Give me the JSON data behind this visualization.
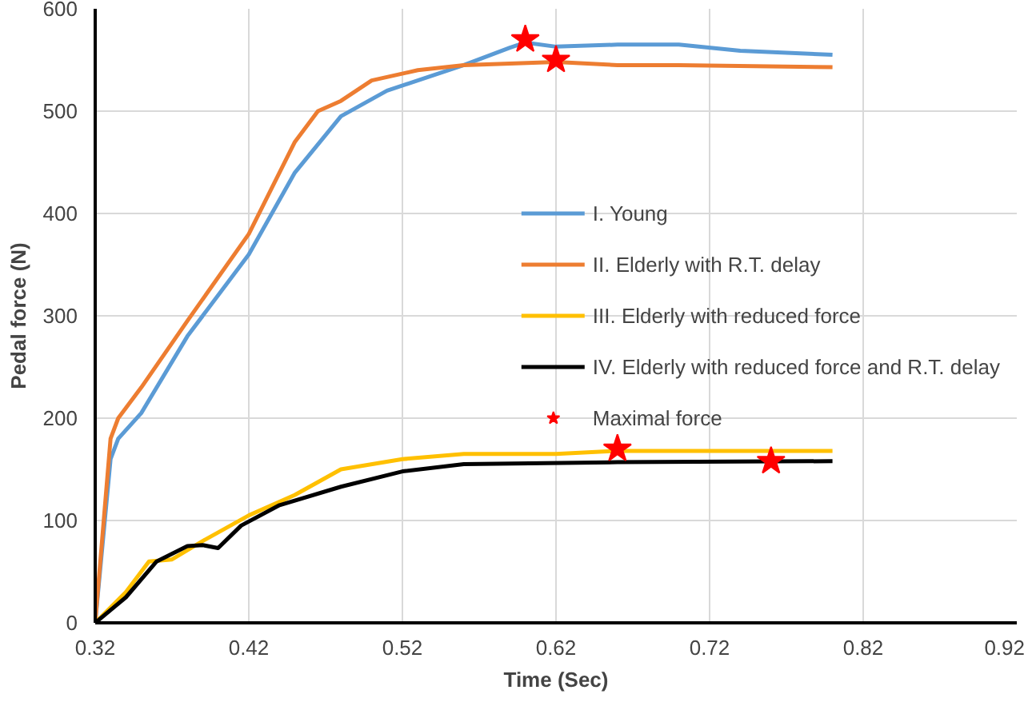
{
  "chart_data": {
    "type": "line",
    "xlabel": "Time (Sec)",
    "ylabel": "Pedal force (N)",
    "xlim": [
      0.32,
      0.92
    ],
    "xticks": [
      0.32,
      0.42,
      0.52,
      0.62,
      0.72,
      0.82,
      0.92
    ],
    "ylim": [
      0,
      600
    ],
    "yticks": [
      0,
      100,
      200,
      300,
      400,
      500,
      600
    ],
    "grid": true,
    "legend": "right",
    "line_style": "solid",
    "marker": "none",
    "series": [
      {
        "name": "I. Young",
        "color": "#5b9bd5",
        "x": [
          0.32,
          0.33,
          0.335,
          0.35,
          0.38,
          0.42,
          0.45,
          0.48,
          0.51,
          0.53,
          0.56,
          0.59,
          0.6,
          0.62,
          0.66,
          0.7,
          0.74,
          0.8
        ],
        "values": [
          0,
          160,
          180,
          205,
          280,
          360,
          440,
          495,
          520,
          530,
          545,
          562,
          567,
          563,
          565,
          565,
          559,
          555
        ]
      },
      {
        "name": "II. Elderly with R.T. delay",
        "color": "#ed7d31",
        "x": [
          0.32,
          0.33,
          0.335,
          0.35,
          0.38,
          0.42,
          0.45,
          0.465,
          0.48,
          0.5,
          0.53,
          0.56,
          0.62,
          0.66,
          0.7,
          0.8
        ],
        "values": [
          0,
          180,
          200,
          230,
          295,
          380,
          470,
          500,
          510,
          530,
          540,
          545,
          548,
          545,
          545,
          543
        ]
      },
      {
        "name": "III. Elderly with reduced force",
        "color": "#ffc000",
        "x": [
          0.32,
          0.34,
          0.355,
          0.37,
          0.39,
          0.42,
          0.45,
          0.48,
          0.52,
          0.56,
          0.62,
          0.66,
          0.8
        ],
        "values": [
          0,
          30,
          60,
          62,
          80,
          105,
          125,
          150,
          160,
          165,
          165,
          168,
          168
        ]
      },
      {
        "name": "IV. Elderly with reduced force and R.T. delay",
        "color": "#000000",
        "x": [
          0.32,
          0.34,
          0.36,
          0.38,
          0.39,
          0.4,
          0.415,
          0.44,
          0.48,
          0.52,
          0.56,
          0.66,
          0.8
        ],
        "values": [
          0,
          25,
          60,
          75,
          76,
          73,
          95,
          115,
          133,
          148,
          155,
          157,
          158
        ]
      },
      {
        "name": "Maximal force",
        "type": "scatter",
        "marker": "star",
        "color": "#ff0000",
        "x": [
          0.6,
          0.62,
          0.66,
          0.76
        ],
        "values": [
          570,
          550,
          170,
          158
        ]
      }
    ]
  }
}
